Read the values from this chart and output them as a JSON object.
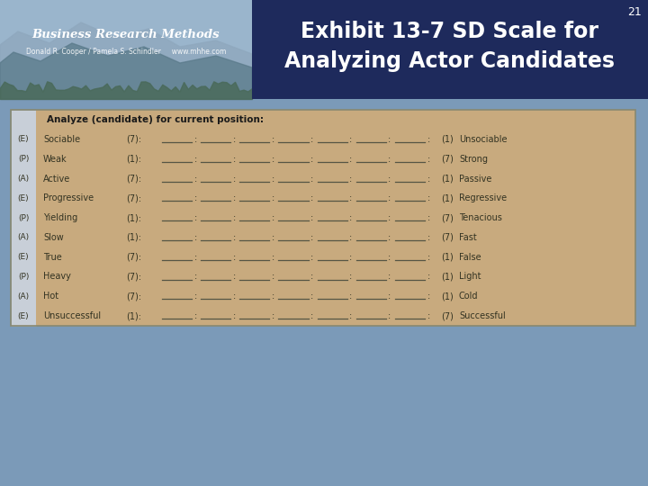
{
  "title_line1": "Exhibit 13-7 SD Scale for",
  "title_line2": "Analyzing Actor Candidates",
  "page_number": "21",
  "header_text": "Business Research Methods",
  "header_subtext": "Donald R. Cooper / Pamela S. Schindler     www.mhhe.com",
  "table_header": "Analyze (candidate) for current position:",
  "rows": [
    {
      "code": "(E)",
      "left_word": "Sociable",
      "left_num": "(7):",
      "right_num": "(1)",
      "right_word": "Unsociable"
    },
    {
      "code": "(P)",
      "left_word": "Weak",
      "left_num": "(1):",
      "right_num": "(7)",
      "right_word": "Strong"
    },
    {
      "code": "(A)",
      "left_word": "Active",
      "left_num": "(7):",
      "right_num": "(1)",
      "right_word": "Passive"
    },
    {
      "code": "(E)",
      "left_word": "Progressive",
      "left_num": "(7):",
      "right_num": "(1)",
      "right_word": "Regressive"
    },
    {
      "code": "(P)",
      "left_word": "Yielding",
      "left_num": "(1):",
      "right_num": "(7)",
      "right_word": "Tenacious"
    },
    {
      "code": "(A)",
      "left_word": "Slow",
      "left_num": "(1):",
      "right_num": "(7)",
      "right_word": "Fast"
    },
    {
      "code": "(E)",
      "left_word": "True",
      "left_num": "(7):",
      "right_num": "(1)",
      "right_word": "False"
    },
    {
      "code": "(P)",
      "left_word": "Heavy",
      "left_num": "(7):",
      "right_num": "(1)",
      "right_word": "Light"
    },
    {
      "code": "(A)",
      "left_word": "Hot",
      "left_num": "(7):",
      "right_num": "(1)",
      "right_word": "Cold"
    },
    {
      "code": "(E)",
      "left_word": "Unsuccessful",
      "left_num": "(1):",
      "right_num": "(7)",
      "right_word": "Successful"
    }
  ],
  "bg_color": "#7b9ab8",
  "header_bg": "#1e2a5c",
  "table_bg": "#c8aa7e",
  "table_border": "#999980",
  "left_sidebar_bg": "#c8cfd8",
  "title_color": "#ffffff",
  "page_num_color": "#ffffff",
  "table_header_color": "#1a1a1a",
  "row_text_color": "#333322",
  "code_color": "#333322",
  "photo_sky": "#9ab5cc",
  "photo_mountain_light": "#8fa8be",
  "photo_mountain_dark": "#5a7a8a",
  "photo_tree": "#4a6a5a"
}
